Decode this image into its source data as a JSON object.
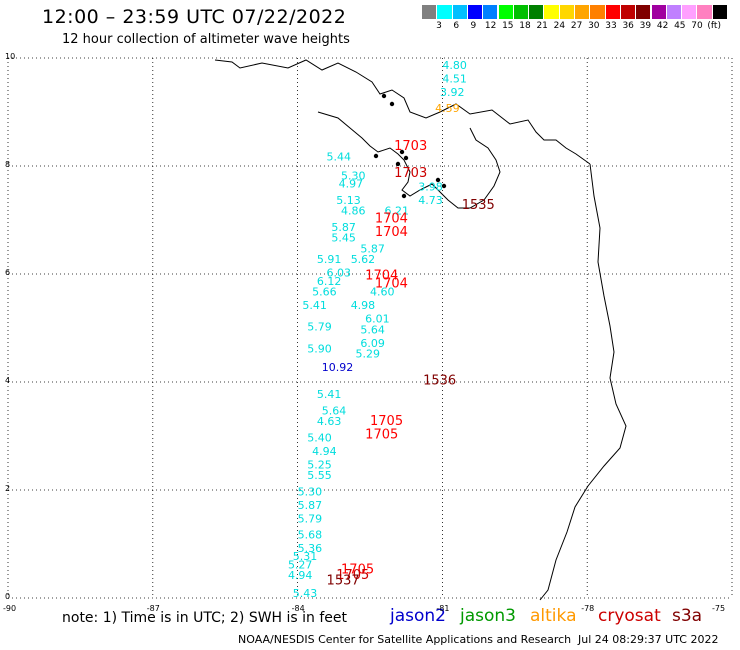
{
  "header": {
    "title": "12:00 – 23:59 UTC 07/22/2022",
    "subtitle": "12 hour collection of altimeter wave heights"
  },
  "colorbar": {
    "colors": [
      "#808080",
      "#00ffff",
      "#00bfff",
      "#0000ff",
      "#0080ff",
      "#00ff00",
      "#00c000",
      "#008000",
      "#ffff00",
      "#ffd700",
      "#ffa500",
      "#ff8000",
      "#ff0000",
      "#c00000",
      "#800000",
      "#a000a0",
      "#c080ff",
      "#ffa0ff",
      "#ff80c0",
      "#000000"
    ],
    "labels": [
      "3",
      "6",
      "9",
      "12",
      "15",
      "18",
      "21",
      "24",
      "27",
      "30",
      "33",
      "36",
      "39",
      "42",
      "45",
      "70",
      "(ft)"
    ]
  },
  "axes": {
    "lat_ticks": [
      "10",
      "8",
      "6",
      "4",
      "2",
      "0"
    ],
    "lon_ticks": [
      "-90",
      "-87",
      "-84",
      "-81",
      "-78",
      "-75"
    ]
  },
  "wave_heights": [
    {
      "v": "4.80",
      "c": "#00dddd",
      "lon": -81.0,
      "lat": 9.8
    },
    {
      "v": "4.51",
      "c": "#00dddd",
      "lon": -81.0,
      "lat": 9.55
    },
    {
      "v": "3.92",
      "c": "#00dddd",
      "lon": -81.05,
      "lat": 9.3
    },
    {
      "v": "4.59",
      "c": "#ffa500",
      "lon": -81.15,
      "lat": 9.0
    },
    {
      "v": "5.44",
      "c": "#00dddd",
      "lon": -83.4,
      "lat": 8.1
    },
    {
      "v": "5.30",
      "c": "#00dddd",
      "lon": -83.1,
      "lat": 7.75
    },
    {
      "v": "4.97",
      "c": "#00dddd",
      "lon": -83.15,
      "lat": 7.6
    },
    {
      "v": "3.98",
      "c": "#00dddd",
      "lon": -81.5,
      "lat": 7.55
    },
    {
      "v": "5.13",
      "c": "#00dddd",
      "lon": -83.2,
      "lat": 7.3
    },
    {
      "v": "4.73",
      "c": "#00dddd",
      "lon": -81.5,
      "lat": 7.3
    },
    {
      "v": "4.86",
      "c": "#00dddd",
      "lon": -83.1,
      "lat": 7.1
    },
    {
      "v": "6.21",
      "c": "#00dddd",
      "lon": -82.2,
      "lat": 7.1
    },
    {
      "v": "5.87",
      "c": "#00dddd",
      "lon": -83.3,
      "lat": 6.8
    },
    {
      "v": "5.45",
      "c": "#00dddd",
      "lon": -83.3,
      "lat": 6.6
    },
    {
      "v": "5.87",
      "c": "#00dddd",
      "lon": -82.7,
      "lat": 6.4
    },
    {
      "v": "5.91",
      "c": "#00dddd",
      "lon": -83.6,
      "lat": 6.2
    },
    {
      "v": "5.62",
      "c": "#00dddd",
      "lon": -82.9,
      "lat": 6.2
    },
    {
      "v": "6.03",
      "c": "#00dddd",
      "lon": -83.4,
      "lat": 5.95
    },
    {
      "v": "6.12",
      "c": "#00dddd",
      "lon": -83.6,
      "lat": 5.8
    },
    {
      "v": "5.66",
      "c": "#00dddd",
      "lon": -83.7,
      "lat": 5.6
    },
    {
      "v": "4.60",
      "c": "#00dddd",
      "lon": -82.5,
      "lat": 5.6
    },
    {
      "v": "5.41",
      "c": "#00dddd",
      "lon": -83.9,
      "lat": 5.35
    },
    {
      "v": "4.98",
      "c": "#00dddd",
      "lon": -82.9,
      "lat": 5.35
    },
    {
      "v": "6.01",
      "c": "#00dddd",
      "lon": -82.6,
      "lat": 5.1
    },
    {
      "v": "5.79",
      "c": "#00dddd",
      "lon": -83.8,
      "lat": 4.95
    },
    {
      "v": "5.64",
      "c": "#00dddd",
      "lon": -82.7,
      "lat": 4.9
    },
    {
      "v": "6.09",
      "c": "#00dddd",
      "lon": -82.7,
      "lat": 4.65
    },
    {
      "v": "5.90",
      "c": "#00dddd",
      "lon": -83.8,
      "lat": 4.55
    },
    {
      "v": "5.29",
      "c": "#00dddd",
      "lon": -82.8,
      "lat": 4.45
    },
    {
      "v": "10.92",
      "c": "#0000cc",
      "lon": -83.5,
      "lat": 4.2
    },
    {
      "v": "5.41",
      "c": "#00dddd",
      "lon": -83.6,
      "lat": 3.7
    },
    {
      "v": "5.64",
      "c": "#00dddd",
      "lon": -83.5,
      "lat": 3.4
    },
    {
      "v": "4.63",
      "c": "#00dddd",
      "lon": -83.6,
      "lat": 3.2
    },
    {
      "v": "5.40",
      "c": "#00dddd",
      "lon": -83.8,
      "lat": 2.9
    },
    {
      "v": "4.94",
      "c": "#00dddd",
      "lon": -83.7,
      "lat": 2.65
    },
    {
      "v": "5.25",
      "c": "#00dddd",
      "lon": -83.8,
      "lat": 2.4
    },
    {
      "v": "5.55",
      "c": "#00dddd",
      "lon": -83.8,
      "lat": 2.2
    },
    {
      "v": "5.30",
      "c": "#00dddd",
      "lon": -84.0,
      "lat": 1.9
    },
    {
      "v": "5.87",
      "c": "#00dddd",
      "lon": -84.0,
      "lat": 1.65
    },
    {
      "v": "5.79",
      "c": "#00dddd",
      "lon": -84.0,
      "lat": 1.4
    },
    {
      "v": "5.68",
      "c": "#00dddd",
      "lon": -84.0,
      "lat": 1.1
    },
    {
      "v": "5.36",
      "c": "#00dddd",
      "lon": -84.0,
      "lat": 0.85
    },
    {
      "v": "5.31",
      "c": "#00dddd",
      "lon": -84.1,
      "lat": 0.7
    },
    {
      "v": "5.27",
      "c": "#00dddd",
      "lon": -84.2,
      "lat": 0.55
    },
    {
      "v": "4.94",
      "c": "#00dddd",
      "lon": -84.2,
      "lat": 0.35
    },
    {
      "v": "5.43",
      "c": "#00dddd",
      "lon": -84.1,
      "lat": 0.02
    }
  ],
  "time_labels": [
    {
      "v": "1703",
      "c": "#ff0000",
      "lon": -82.0,
      "lat": 8.3
    },
    {
      "v": "1703",
      "c": "#cc0000",
      "lon": -82.0,
      "lat": 7.8
    },
    {
      "v": "1535",
      "c": "#800000",
      "lon": -80.6,
      "lat": 7.2
    },
    {
      "v": "1704",
      "c": "#ff0000",
      "lon": -82.4,
      "lat": 6.95
    },
    {
      "v": "1704",
      "c": "#ff0000",
      "lon": -82.4,
      "lat": 6.7
    },
    {
      "v": "1704",
      "c": "#ff0000",
      "lon": -82.6,
      "lat": 5.9
    },
    {
      "v": "1704",
      "c": "#ff0000",
      "lon": -82.4,
      "lat": 5.75
    },
    {
      "v": "1536",
      "c": "#800000",
      "lon": -81.4,
      "lat": 3.95
    },
    {
      "v": "1705",
      "c": "#ff0000",
      "lon": -82.5,
      "lat": 3.2
    },
    {
      "v": "1705",
      "c": "#ff0000",
      "lon": -82.6,
      "lat": 2.95
    },
    {
      "v": "1705",
      "c": "#ff0000",
      "lon": -83.1,
      "lat": 0.45
    },
    {
      "v": "1705",
      "c": "#cc0000",
      "lon": -83.2,
      "lat": 0.35
    },
    {
      "v": "1537",
      "c": "#800000",
      "lon": -83.4,
      "lat": 0.25
    }
  ],
  "note": "note:  1) Time is in UTC;  2) SWH is in feet",
  "satellites": [
    {
      "name": "jason2",
      "color": "#0000cc"
    },
    {
      "name": "jason3",
      "color": "#009900"
    },
    {
      "name": "altika",
      "color": "#ff9900"
    },
    {
      "name": "cryosat",
      "color": "#cc0000"
    },
    {
      "name": "s3a",
      "color": "#800000"
    }
  ],
  "footer": {
    "credit": "NOAA/NESDIS Center for Satellite Applications and Research",
    "timestamp": "Jul 24 08:29:37 UTC 2022"
  }
}
